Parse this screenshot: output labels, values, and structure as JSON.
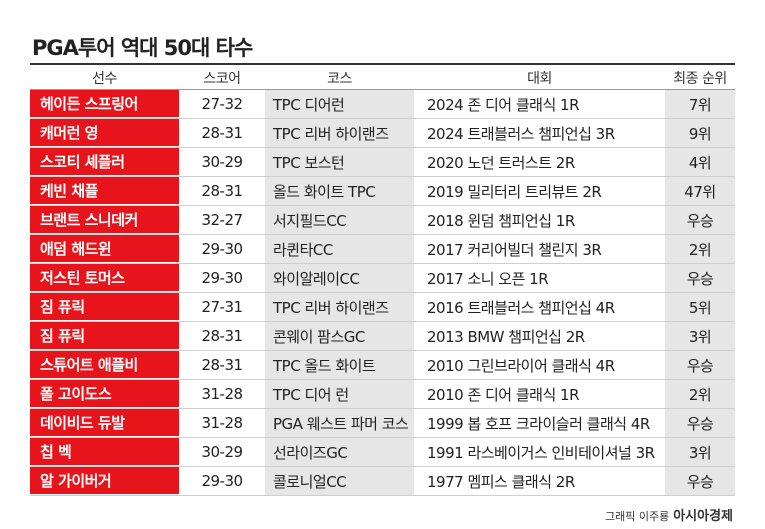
{
  "header": {
    "title": "PGA투어 역대 50대 타수"
  },
  "table": {
    "headers": [
      "선수",
      "스코어",
      "코스",
      "대회",
      "최종 순위"
    ],
    "rows": [
      [
        "헤이든 스프링어",
        "27-32",
        "TPC 디어런",
        "2024 존 디어 클래식 1R",
        "7위"
      ],
      [
        "캐머런 영",
        "28-31",
        "TPC 리버 하이랜즈",
        "2024 트래블러스 챔피언십 3R",
        "9위"
      ],
      [
        "스코티 셰플러",
        "30-29",
        "TPC 보스턴",
        "2020 노던 트러스트 2R",
        "4위"
      ],
      [
        "케빈 채플",
        "28-31",
        "올드 화이트 TPC",
        "2019 밀리터리 트리뷰트 2R",
        "47위"
      ],
      [
        "브랜트 스니데커",
        "32-27",
        "서지필드CC",
        "2018 윈덤 챔피언십 1R",
        "우승"
      ],
      [
        "애덤 해드윈",
        "29-30",
        "라퀸타CC",
        "2017 커리어빌더 챌린지 3R",
        "2위"
      ],
      [
        "저스틴 토머스",
        "29-30",
        "와이알레이CC",
        "2017 소니 오픈 1R",
        "우승"
      ],
      [
        "짐 퓨릭",
        "27-31",
        "TPC 리버 하이랜즈",
        "2016 트래블러스 챔피언십 4R",
        "5위"
      ],
      [
        "짐 퓨릭",
        "28-31",
        "콘웨이 팜스GC",
        "2013 BMW 챔피언십 2R",
        "3위"
      ],
      [
        "스튜어트 애플비",
        "28-31",
        "TPC 올드 화이트",
        "2010 그린브라이어 클래식 4R",
        "우승"
      ],
      [
        "폴 고이도스",
        "31-28",
        "TPC 디어 런",
        "2010 존 디어 클래식 1R",
        "2위"
      ],
      [
        "데이비드 듀발",
        "31-28",
        "PGA 웨스트 파머 코스",
        "1999 봅 호프 크라이슬러 클래식 4R",
        "우승"
      ],
      [
        "칩 벡",
        "30-29",
        "선라이즈GC",
        "1991 라스베이거스 인비테이셔널 3R",
        "3위"
      ],
      [
        "알 가이버거",
        "29-30",
        "콜로니얼CC",
        "1977 멤피스 클래식 2R",
        "우승"
      ]
    ]
  },
  "footer": {
    "credit": "그래픽 이주룡",
    "brand": "아시아경제"
  }
}
